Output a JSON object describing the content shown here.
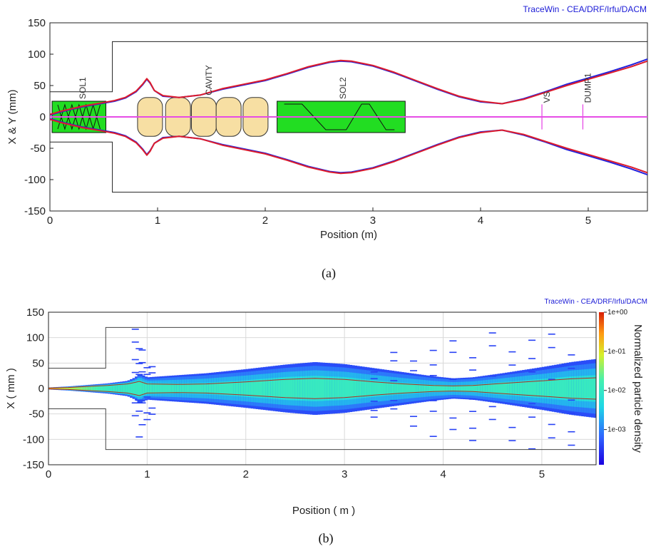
{
  "credit": "TraceWin - CEA/DRF/Irfu/DACM",
  "chart_data": [
    {
      "type": "line",
      "panel_caption": "(a)",
      "xlabel": "Position (m)",
      "ylabel": "X & Y (mm)",
      "xlim": [
        0,
        5.55
      ],
      "ylim": [
        -150,
        150
      ],
      "x_ticks": [
        0,
        1,
        2,
        3,
        4,
        5
      ],
      "y_ticks": [
        -150,
        -100,
        -50,
        0,
        50,
        100,
        150
      ],
      "grid": false,
      "colors": {
        "x_envelope": "#2222dd",
        "y_envelope": "#dd1c2c",
        "axis_line": "#e64ce6",
        "solenoid": "#22dd22",
        "cavity": "#f7dfa3"
      },
      "aperture": {
        "x": [
          0,
          0.58,
          0.58,
          5.55
        ],
        "y": [
          40,
          40,
          120,
          120
        ]
      },
      "elements": [
        {
          "label": "SOL1",
          "type": "solenoid",
          "x_start": 0.02,
          "x_end": 0.52,
          "half_height": 25
        },
        {
          "label": "CAVITY",
          "type": "cavity",
          "cells_center": [
            0.93,
            1.19,
            1.43,
            1.66,
            1.91
          ],
          "half_height": 31
        },
        {
          "label": "SOL2",
          "type": "solenoid",
          "x_start": 2.11,
          "x_end": 3.3,
          "half_height": 25
        },
        {
          "label": "VS",
          "type": "marker",
          "x": 4.57
        },
        {
          "label": "DUMP1",
          "type": "marker",
          "x": 4.95
        }
      ],
      "series": [
        {
          "x": [
            0,
            0.1,
            0.2,
            0.3,
            0.4,
            0.5,
            0.6,
            0.7,
            0.8,
            0.86,
            0.9,
            0.93,
            0.97,
            1.05,
            1.2,
            1.4,
            1.6,
            1.8,
            2.0,
            2.2,
            2.4,
            2.6,
            2.7,
            2.8,
            3.0,
            3.2,
            3.4,
            3.6,
            3.8,
            4.0,
            4.2,
            4.4,
            4.6,
            4.8,
            5.0,
            5.2,
            5.4,
            5.55
          ],
          "y": [
            3,
            8,
            12,
            16,
            19,
            22,
            25,
            30,
            40,
            51,
            60,
            54,
            42,
            33,
            31,
            35,
            44,
            51,
            58,
            68,
            79,
            87,
            89,
            88,
            81,
            70,
            57,
            44,
            32,
            24,
            21,
            29,
            40,
            52,
            62,
            72,
            83,
            92
          ]
        },
        {
          "x": [
            0,
            0.1,
            0.2,
            0.3,
            0.4,
            0.5,
            0.6,
            0.7,
            0.8,
            0.86,
            0.9,
            0.93,
            0.97,
            1.05,
            1.2,
            1.4,
            1.6,
            1.8,
            2.0,
            2.2,
            2.4,
            2.6,
            2.7,
            2.8,
            3.0,
            3.2,
            3.4,
            3.6,
            3.8,
            4.0,
            4.2,
            4.4,
            4.6,
            4.8,
            5.0,
            5.2,
            5.4,
            5.55
          ],
          "y": [
            4,
            9,
            13,
            17,
            20,
            23,
            26,
            31,
            41,
            52,
            61,
            55,
            42,
            34,
            31,
            35,
            45,
            52,
            59,
            69,
            80,
            88,
            90,
            89,
            82,
            71,
            58,
            45,
            33,
            25,
            21,
            28,
            39,
            50,
            60,
            70,
            80,
            89
          ]
        }
      ]
    },
    {
      "type": "heatmap",
      "panel_caption": "(b)",
      "xlabel": "Position ( m )",
      "ylabel": "X ( mm )",
      "colorbar_label": "Normalized particle density",
      "colorbar_ticks": [
        "1e+00",
        "1e-01",
        "1e-02",
        "1e-03"
      ],
      "colorbar_range_log10": [
        -3.9,
        0
      ],
      "xlim": [
        0,
        5.55
      ],
      "ylim": [
        -150,
        150
      ],
      "x_ticks": [
        0,
        1,
        2,
        3,
        4,
        5
      ],
      "y_ticks": [
        -150,
        -100,
        -50,
        0,
        50,
        100,
        150
      ],
      "grid": true,
      "aperture": {
        "x": [
          0,
          0.58,
          0.58,
          5.55
        ],
        "y": [
          40,
          40,
          120,
          120
        ]
      },
      "rms_envelope_color": "#b03020",
      "profile": {
        "x": [
          0,
          0.2,
          0.4,
          0.6,
          0.8,
          0.88,
          0.92,
          1.0,
          1.3,
          1.6,
          2.0,
          2.4,
          2.7,
          3.0,
          3.3,
          3.6,
          3.9,
          4.1,
          4.3,
          4.6,
          5.0,
          5.3,
          5.55
        ],
        "halo": [
          2,
          4,
          7,
          10,
          15,
          22,
          30,
          22,
          26,
          30,
          38,
          47,
          52,
          48,
          40,
          32,
          24,
          20,
          22,
          30,
          42,
          52,
          58
        ],
        "core": [
          1,
          2,
          4,
          6,
          9,
          12,
          14,
          9,
          8,
          9,
          13,
          18,
          20,
          18,
          13,
          9,
          6,
          5,
          6,
          10,
          15,
          19,
          21
        ]
      }
    }
  ]
}
